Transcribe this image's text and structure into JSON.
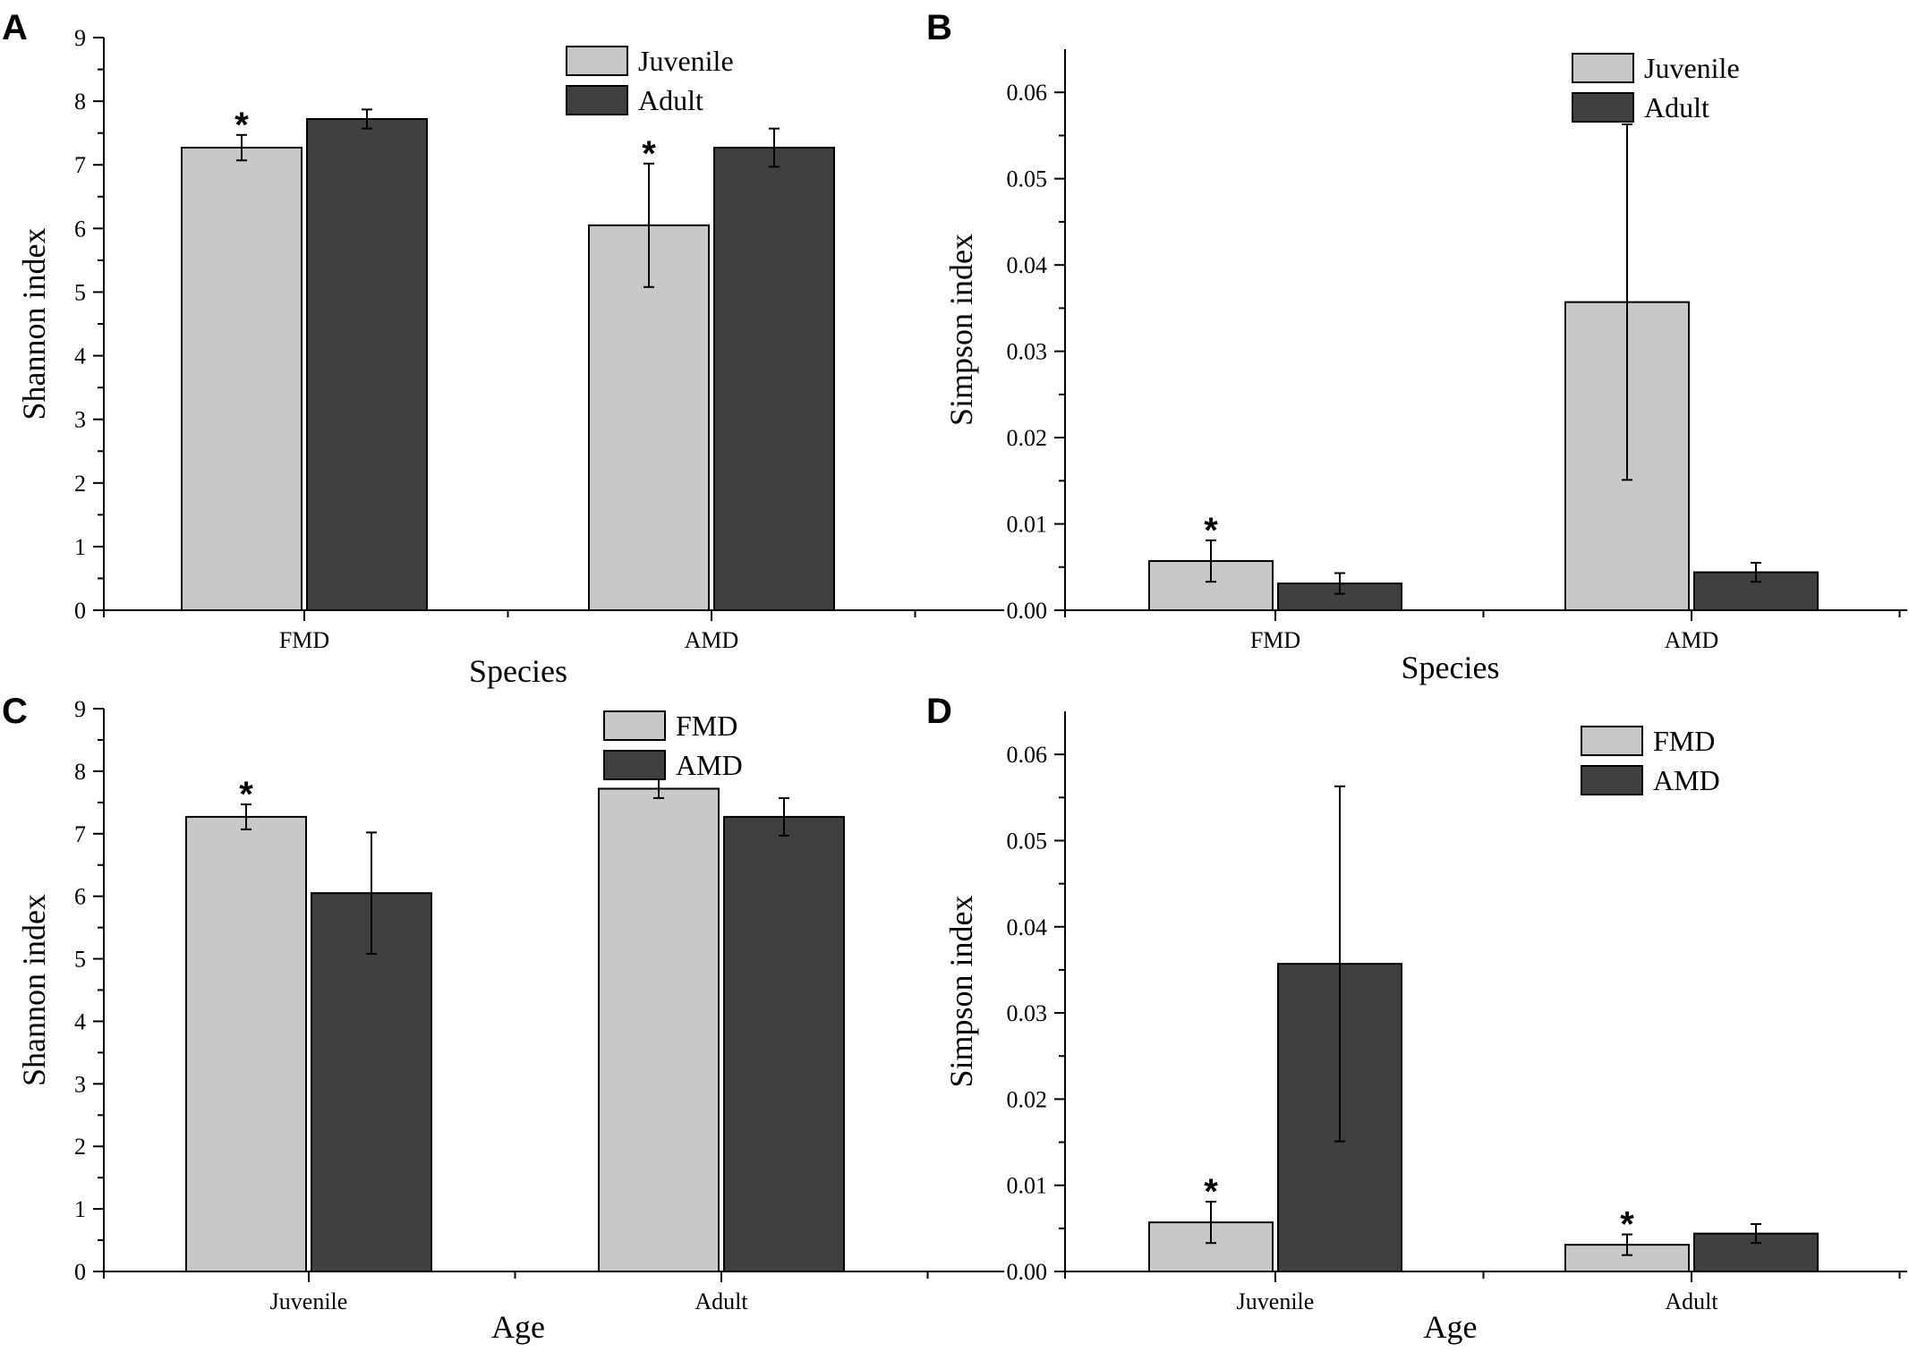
{
  "colors": {
    "light": "#c8c8c8",
    "dark": "#404040",
    "axis": "#000000"
  },
  "chart_data": [
    {
      "panel": "A",
      "type": "bar",
      "xlabel": "Species",
      "ylabel": "Shannon index",
      "categories": [
        "FMD",
        "AMD"
      ],
      "ylim": [
        0,
        9
      ],
      "yticks": [
        "0",
        "1",
        "2",
        "3",
        "4",
        "5",
        "6",
        "7",
        "8",
        "9"
      ],
      "series": [
        {
          "name": "Juvenile",
          "color": "#c8c8c8",
          "values": [
            7.27,
            6.05
          ],
          "errors": [
            0.2,
            0.97
          ],
          "sig": [
            "*",
            "*"
          ]
        },
        {
          "name": "Adult",
          "color": "#404040",
          "values": [
            7.72,
            7.27
          ],
          "errors": [
            0.15,
            0.3
          ],
          "sig": [
            "",
            ""
          ]
        }
      ],
      "legend": "top-right"
    },
    {
      "panel": "B",
      "type": "bar",
      "xlabel": "Species",
      "ylabel": "Simpson index",
      "categories": [
        "FMD",
        "AMD"
      ],
      "ylim": [
        0,
        0.065
      ],
      "yticks": [
        "0.00",
        "0.01",
        "0.02",
        "0.03",
        "0.04",
        "0.05",
        "0.06"
      ],
      "series": [
        {
          "name": "Juvenile",
          "color": "#c8c8c8",
          "values": [
            0.0057,
            0.0357
          ],
          "errors": [
            0.0024,
            0.0206
          ],
          "sig": [
            "*",
            "*"
          ]
        },
        {
          "name": "Adult",
          "color": "#404040",
          "values": [
            0.0031,
            0.0044
          ],
          "errors": [
            0.0012,
            0.0011
          ],
          "sig": [
            "",
            ""
          ]
        }
      ],
      "legend": "top-right"
    },
    {
      "panel": "C",
      "type": "bar",
      "xlabel": "Age",
      "ylabel": "Shannon index",
      "categories": [
        "Juvenile",
        "Adult"
      ],
      "ylim": [
        0,
        9
      ],
      "yticks": [
        "0",
        "1",
        "2",
        "3",
        "4",
        "5",
        "6",
        "7",
        "8",
        "9"
      ],
      "series": [
        {
          "name": "FMD",
          "color": "#c8c8c8",
          "values": [
            7.27,
            7.72
          ],
          "errors": [
            0.2,
            0.15
          ],
          "sig": [
            "*",
            "*"
          ]
        },
        {
          "name": "AMD",
          "color": "#404040",
          "values": [
            6.05,
            7.27
          ],
          "errors": [
            0.97,
            0.3
          ],
          "sig": [
            "",
            ""
          ]
        }
      ],
      "legend": "top-right"
    },
    {
      "panel": "D",
      "type": "bar",
      "xlabel": "Age",
      "ylabel": "Simpson index",
      "categories": [
        "Juvenile",
        "Adult"
      ],
      "ylim": [
        0,
        0.065
      ],
      "yticks": [
        "0.00",
        "0.01",
        "0.02",
        "0.03",
        "0.04",
        "0.05",
        "0.06"
      ],
      "series": [
        {
          "name": "FMD",
          "color": "#c8c8c8",
          "values": [
            0.0057,
            0.0031
          ],
          "errors": [
            0.0024,
            0.0012
          ],
          "sig": [
            "*",
            "*"
          ]
        },
        {
          "name": "AMD",
          "color": "#404040",
          "values": [
            0.0357,
            0.0044
          ],
          "errors": [
            0.0206,
            0.0011
          ],
          "sig": [
            "",
            ""
          ]
        }
      ],
      "legend": "top-right"
    }
  ]
}
